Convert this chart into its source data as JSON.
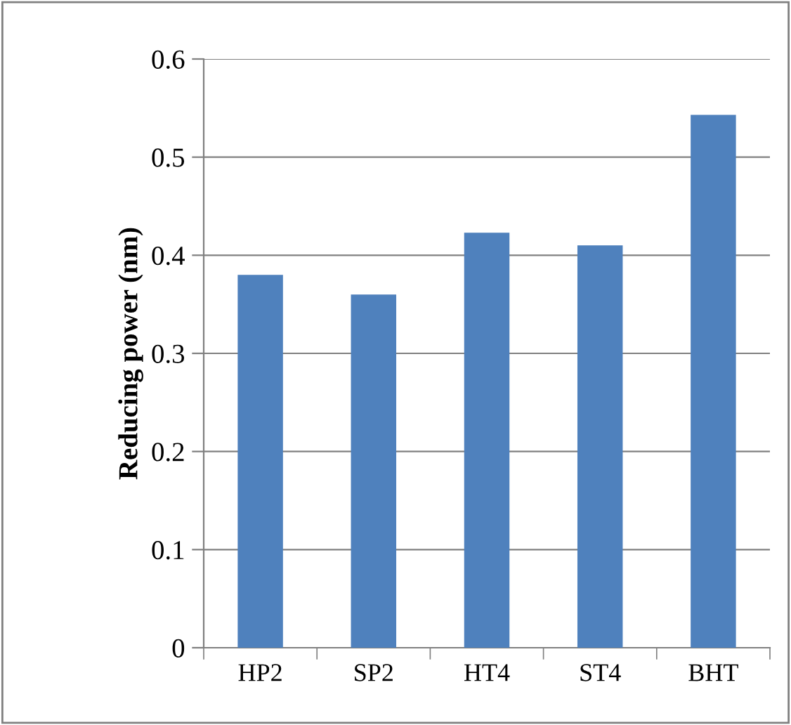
{
  "chart_data": {
    "type": "bar",
    "ylabel": "Reducing power (nm)",
    "categories": [
      "HP2",
      "SP2",
      "HT4",
      "ST4",
      "BHT"
    ],
    "values": [
      0.38,
      0.36,
      0.423,
      0.41,
      0.543
    ],
    "color": "#4f81bd",
    "ylim": [
      0,
      0.6
    ],
    "yticks": [
      {
        "value": 0,
        "label": "0"
      },
      0.1,
      0.2,
      0.3,
      0.4,
      0.5,
      0.6
    ],
    "grid": "y"
  }
}
